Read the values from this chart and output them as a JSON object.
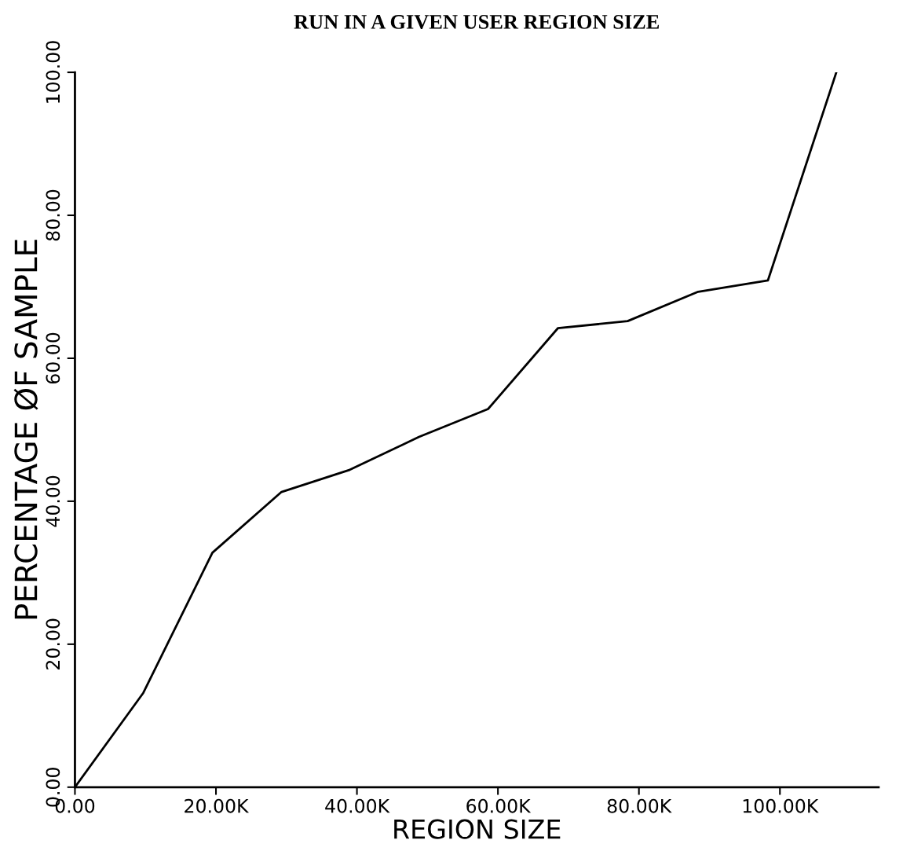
{
  "chart_data": {
    "type": "line",
    "title": "RUN IN A GIVEN USER REGION SIZE",
    "xlabel": "REGION SIZE",
    "ylabel": "PERCENTAGE ØF SAMPLE",
    "x": [
      0,
      9700,
      19500,
      29300,
      39000,
      48800,
      58600,
      68500,
      78400,
      88400,
      98300,
      108000
    ],
    "series": [
      {
        "color": "#000000",
        "values": [
          0,
          13.2,
          32.8,
          41.3,
          44.4,
          49.0,
          52.9,
          64.2,
          65.2,
          69.3,
          70.9,
          100
        ]
      }
    ],
    "xlim": [
      0,
      114000
    ],
    "ylim": [
      0,
      100
    ],
    "xticks": [
      {
        "value": 0,
        "label": "0.00"
      },
      {
        "value": 20000,
        "label": "20.00K"
      },
      {
        "value": 40000,
        "label": "40.00K"
      },
      {
        "value": 60000,
        "label": "60.00K"
      },
      {
        "value": 80000,
        "label": "80.00K"
      },
      {
        "value": 100000,
        "label": "100.00K"
      }
    ],
    "yticks": [
      {
        "value": 0,
        "label": "0.00"
      },
      {
        "value": 20,
        "label": "20.00"
      },
      {
        "value": 40,
        "label": "40.00"
      },
      {
        "value": 60,
        "label": "60.00"
      },
      {
        "value": 80,
        "label": "80.00"
      },
      {
        "value": 100,
        "label": "100.00"
      }
    ],
    "grid": false,
    "legend": false,
    "marker": "none",
    "line_style": "solid"
  }
}
